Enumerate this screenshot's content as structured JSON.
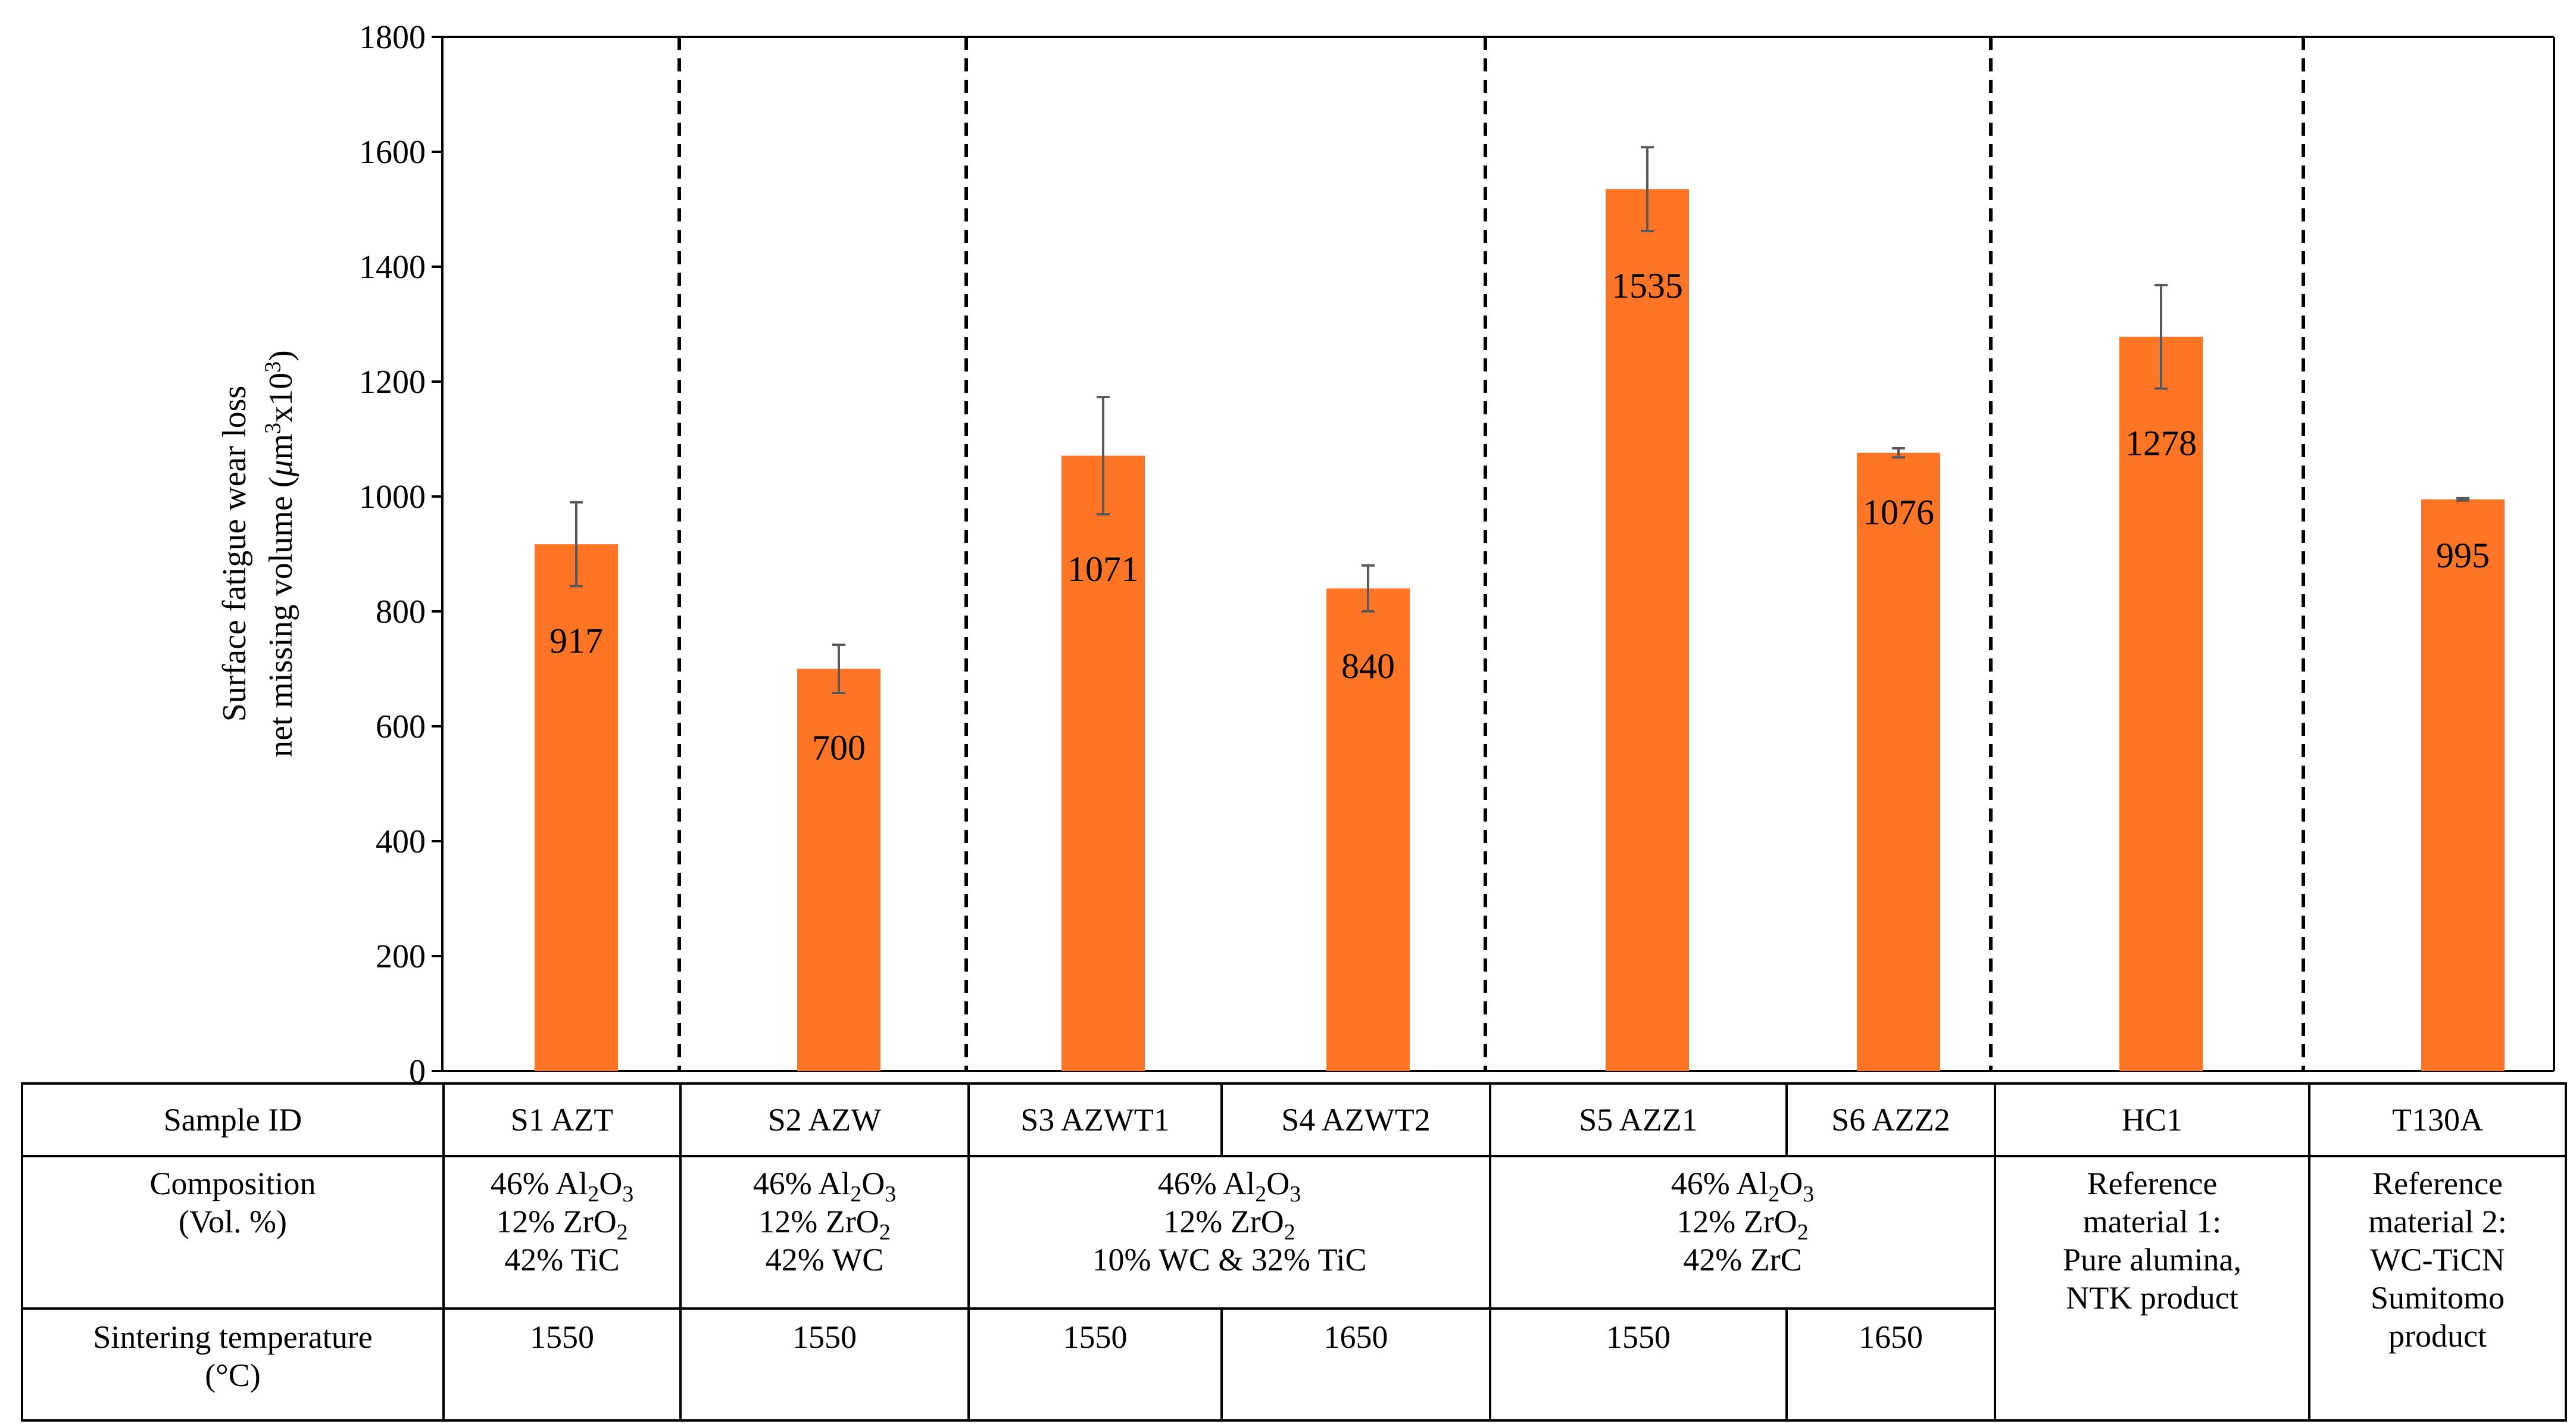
{
  "chart_data": {
    "type": "bar",
    "categories": [
      "S1 AZT",
      "S2 AZW",
      "S3 AZWT1",
      "S4 AZWT2",
      "S5 AZZ1",
      "S6 AZZ2",
      "HC1",
      "T130A"
    ],
    "values": [
      917,
      700,
      1071,
      840,
      1535,
      1076,
      1278,
      995
    ],
    "error_bars": [
      73,
      42,
      102,
      40,
      73,
      8,
      90,
      2
    ],
    "data_labels": [
      "917",
      "700",
      "1071",
      "840",
      "1535",
      "1076",
      "1278",
      "995"
    ],
    "ylim": [
      0,
      1800
    ],
    "yticks": [
      "0",
      "200",
      "400",
      "600",
      "800",
      "1000",
      "1200",
      "1400",
      "1600",
      "1800"
    ],
    "bar_color": "#FF7526",
    "error_color": "#595959",
    "group_separators_after": [
      "S1 AZT",
      "S2 AZW",
      "S4 AZWT2",
      "S6 AZZ2",
      "HC1"
    ],
    "ylabel_line1": "Surface fatigue wear loss",
    "ylabel_line2_pre": "net missing volume (",
    "ylabel_mu": "μ",
    "ylabel_m": "m",
    "ylabel_sup1": "3",
    "ylabel_x10": "x10",
    "ylabel_sup2": "3",
    "ylabel_close": ")"
  },
  "table": {
    "row_headers": {
      "sample_id": "Sample ID",
      "composition_1": "Composition",
      "composition_2": "(Vol. %)",
      "sintering_1": "Sintering temperature",
      "sintering_2": "(°C)"
    },
    "sample_ids": [
      "S1 AZT",
      "S2 AZW",
      "S3 AZWT1",
      "S4 AZWT2",
      "S5 AZZ1",
      "S6 AZZ2",
      "HC1",
      "T130A"
    ],
    "composition": {
      "al_prefix": "46% Al",
      "al_sub1": "2",
      "al_mid": "O",
      "al_sub2": "3",
      "zr_prefix": "12% ZrO",
      "zr_sub": "2",
      "s1_line3": "42% TiC",
      "s2_line3": "42% WC",
      "s34_line3": "10% WC & 32% TiC",
      "s56_line3": "42% ZrC",
      "hc1": [
        "Reference",
        "material 1:",
        "Pure alumina,",
        "NTK product"
      ],
      "t130a": [
        "Reference",
        "material 2:",
        "WC-TiCN",
        "Sumitomo",
        "product"
      ]
    },
    "sintering": [
      "1550",
      "1550",
      "1550",
      "1650",
      "1550",
      "1650"
    ]
  }
}
